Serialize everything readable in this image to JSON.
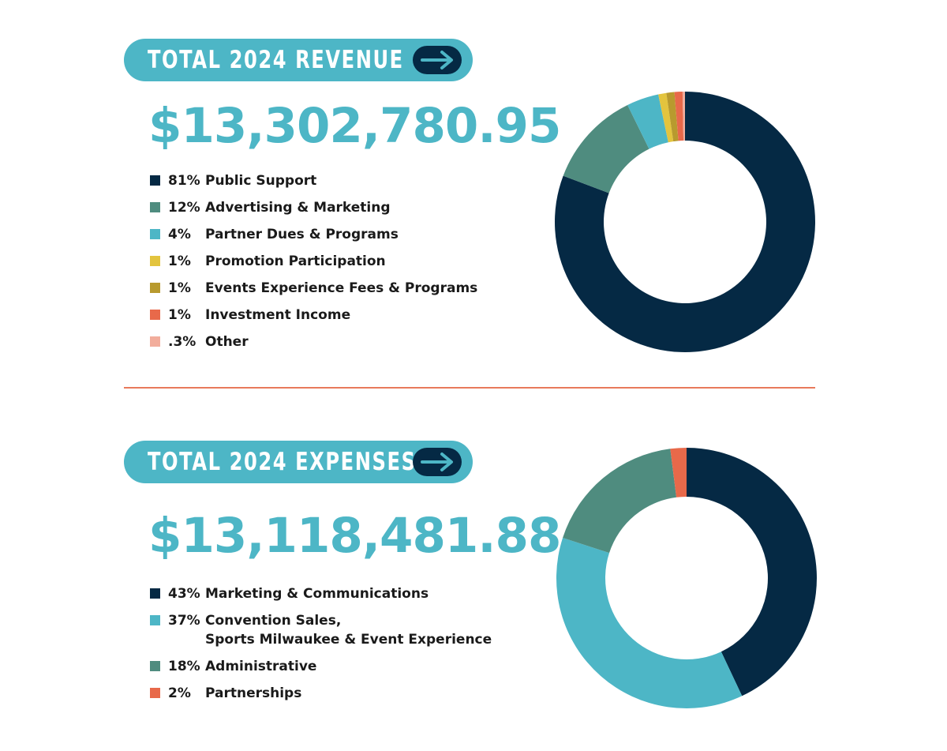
{
  "colors": {
    "teal_light": "#4db6c6",
    "navy": "#052944",
    "sea_green": "#4f8c7f",
    "yellow": "#e3c43e",
    "olive": "#b89a2e",
    "coral": "#e8694a",
    "salmon": "#f2ad9c",
    "divider": "#e87a5b"
  },
  "revenue": {
    "heading": "TOTAL 2024 REVENUE",
    "amount": "$13,302,780.95",
    "arrow_icon": "arrow-right-icon",
    "legend": [
      {
        "pct": "81%",
        "label": "Public Support",
        "color": "#052944"
      },
      {
        "pct": "12%",
        "label": "Advertising & Marketing",
        "color": "#4f8c7f"
      },
      {
        "pct": "4%",
        "label": "Partner Dues & Programs",
        "color": "#4db6c6"
      },
      {
        "pct": "1%",
        "label": "Promotion Participation",
        "color": "#e3c43e"
      },
      {
        "pct": "1%",
        "label": "Events Experience Fees & Programs",
        "color": "#b89a2e"
      },
      {
        "pct": "1%",
        "label": "Investment Income",
        "color": "#e8694a"
      },
      {
        "pct": ".3%",
        "label": "Other",
        "color": "#f2ad9c"
      }
    ]
  },
  "expenses": {
    "heading": "TOTAL 2024 EXPENSES",
    "amount": "$13,118,481.88",
    "arrow_icon": "arrow-right-icon",
    "legend": [
      {
        "pct": "43%",
        "label": "Marketing & Communications",
        "label2": "",
        "color": "#052944"
      },
      {
        "pct": "37%",
        "label": "Convention Sales,",
        "label2": "Sports Milwaukee & Event Experience",
        "color": "#4db6c6"
      },
      {
        "pct": "18%",
        "label": "Administrative",
        "label2": "",
        "color": "#4f8c7f"
      },
      {
        "pct": "2%",
        "label": "Partnerships",
        "label2": "",
        "color": "#e8694a"
      }
    ]
  },
  "chart_data": [
    {
      "type": "pie",
      "donut": true,
      "categories": [
        "Public Support",
        "Advertising & Marketing",
        "Partner Dues & Programs",
        "Promotion Participation",
        "Events Experience Fees & Programs",
        "Investment Income",
        "Other"
      ],
      "values": [
        81,
        12,
        4,
        1,
        1,
        1,
        0.3
      ],
      "colors": [
        "#052944",
        "#4f8c7f",
        "#4db6c6",
        "#e3c43e",
        "#b89a2e",
        "#e8694a",
        "#f2ad9c"
      ]
    },
    {
      "type": "pie",
      "donut": true,
      "categories": [
        "Marketing & Communications",
        "Convention Sales, Sports Milwaukee & Event Experience",
        "Administrative",
        "Partnerships"
      ],
      "values": [
        43,
        37,
        18,
        2
      ],
      "colors": [
        "#052944",
        "#4db6c6",
        "#4f8c7f",
        "#e8694a"
      ]
    }
  ]
}
